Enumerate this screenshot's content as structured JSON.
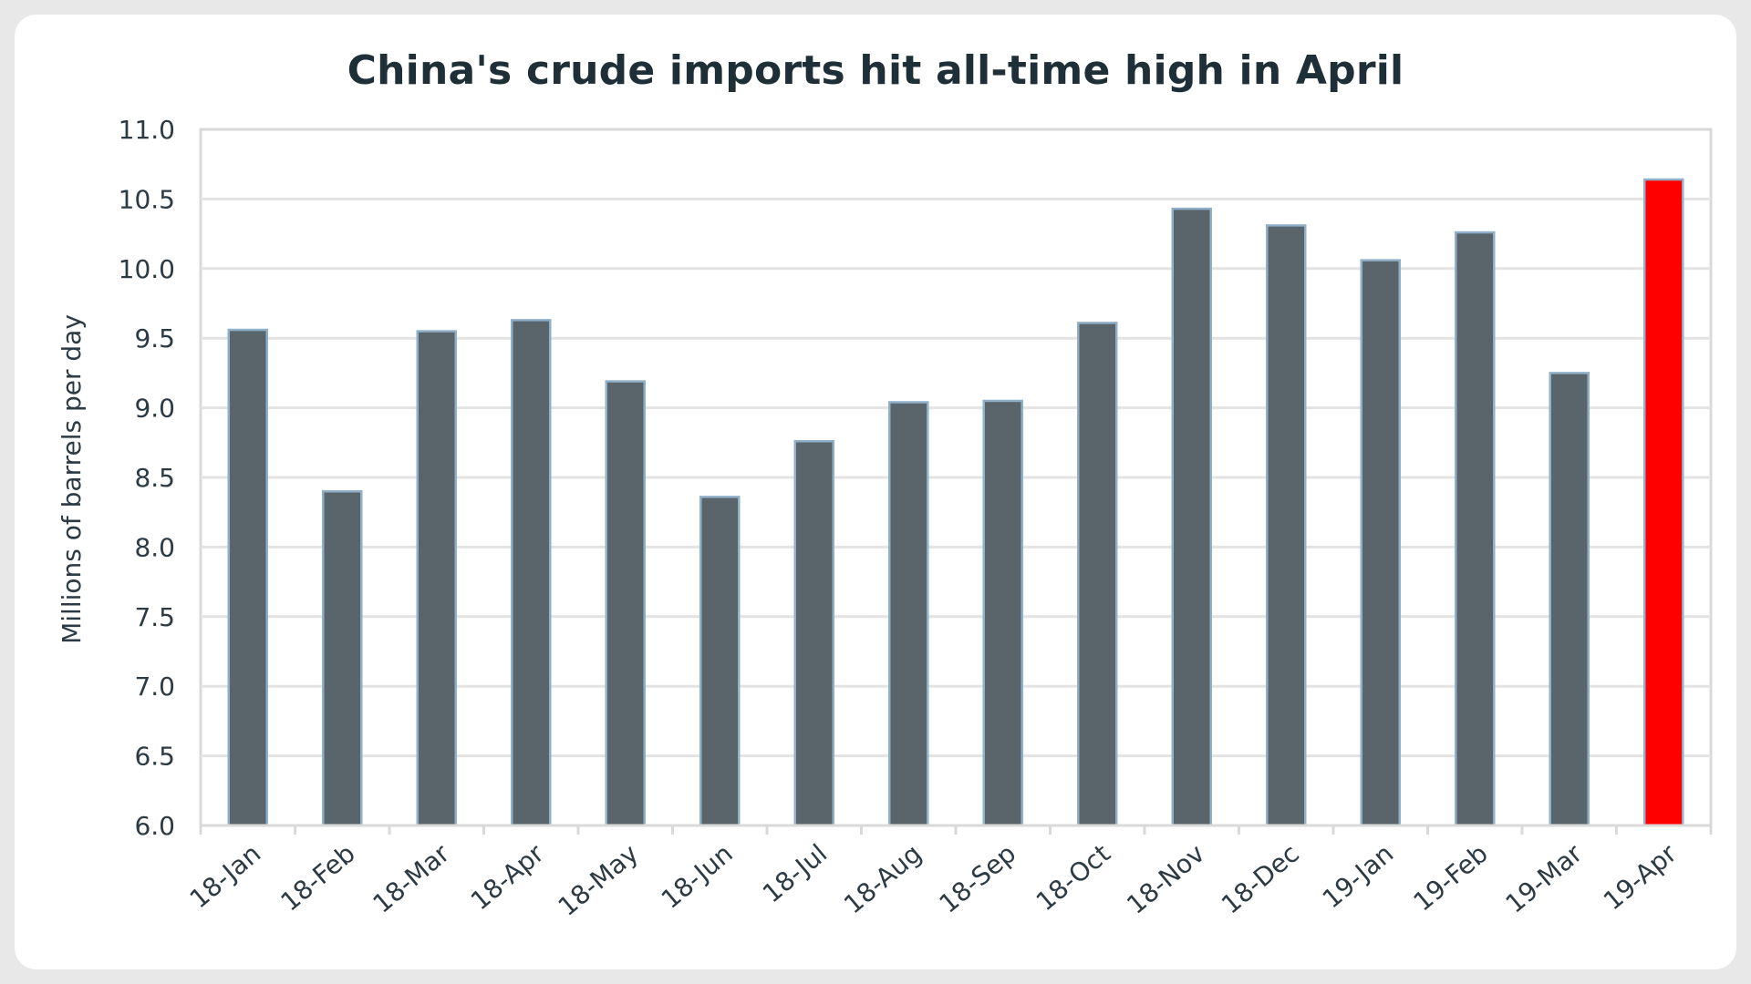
{
  "chart_data": {
    "type": "bar",
    "title": "China's crude imports hit all-time high in April",
    "xlabel": "",
    "ylabel": "Millions of barrels per day",
    "ylim": [
      6.0,
      11.0
    ],
    "ytick_step": 0.5,
    "grid": true,
    "legend": "none",
    "categories": [
      "18-Jan",
      "18-Feb",
      "18-Mar",
      "18-Apr",
      "18-May",
      "18-Jun",
      "18-Jul",
      "18-Aug",
      "18-Sep",
      "18-Oct",
      "18-Nov",
      "18-Dec",
      "19-Jan",
      "19-Feb",
      "19-Mar",
      "19-Apr"
    ],
    "values": [
      9.56,
      8.4,
      9.55,
      9.63,
      9.19,
      8.36,
      8.76,
      9.04,
      9.05,
      9.61,
      10.43,
      10.31,
      10.06,
      10.26,
      9.25,
      10.64
    ],
    "highlight_category": "19-Apr",
    "colors": {
      "bar": "#5a656b",
      "bar_outline": "#8fb0c8",
      "highlight": "#ff0000",
      "grid": "#e3e3e3",
      "axis": "#d9d9d9"
    }
  }
}
